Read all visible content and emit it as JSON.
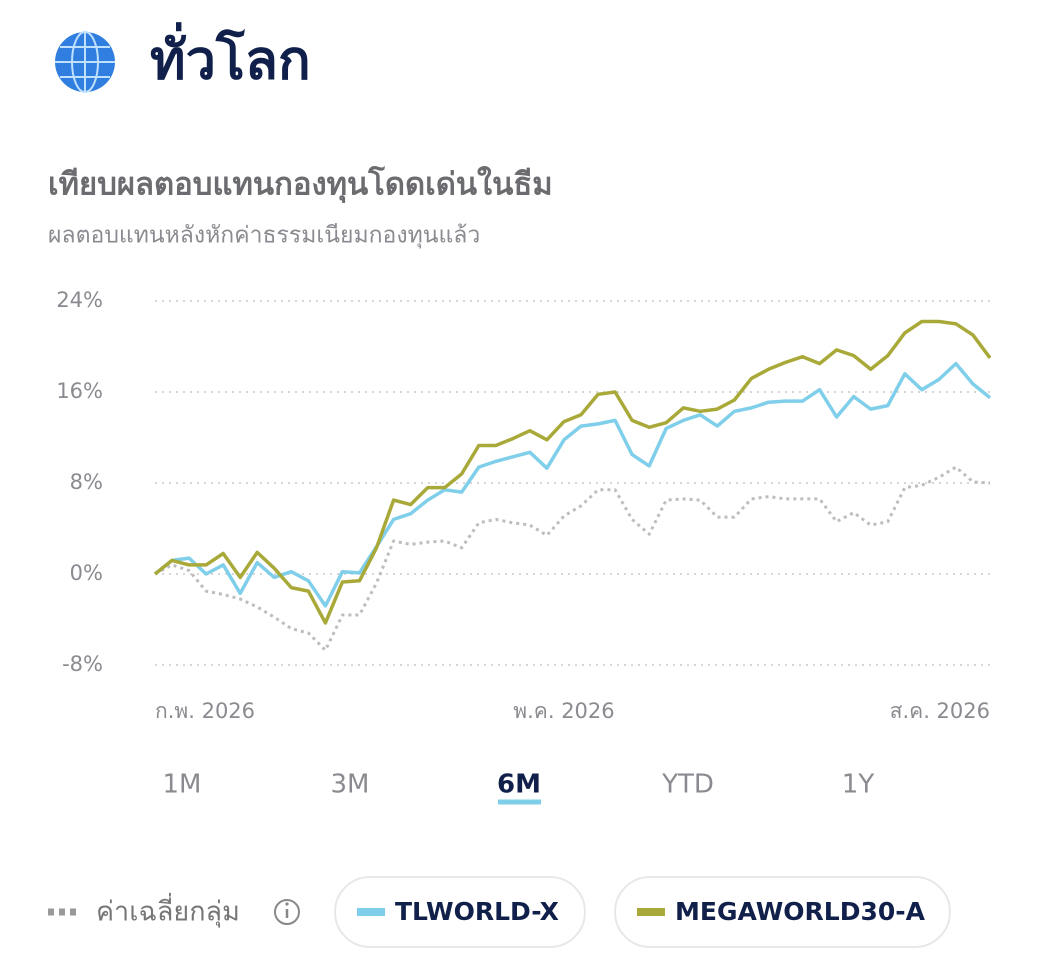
{
  "header": {
    "title": "ทั่วโลก"
  },
  "tabs": {
    "items": [
      "1M",
      "3M",
      "6M",
      "YTD",
      "1Y"
    ],
    "active": 2
  },
  "chart_data": {
    "type": "line",
    "title": "เทียบผลตอบแทนกองทุนโดดเด่นในธีม",
    "subtitle": "ผลตอบแทนหลังหักค่าธรรมเนียมกองทุนแล้ว",
    "categories": [
      "ก.พ. 2026",
      null,
      null,
      null,
      null,
      null,
      null,
      null,
      null,
      null,
      null,
      null,
      null,
      null,
      null,
      null,
      null,
      null,
      null,
      null,
      null,
      null,
      null,
      null,
      "พ.ค. 2026",
      null,
      null,
      null,
      null,
      null,
      null,
      null,
      null,
      null,
      null,
      null,
      null,
      null,
      null,
      null,
      null,
      null,
      null,
      null,
      null,
      null,
      null,
      null,
      null,
      "ส.ค. 2026"
    ],
    "ylim": [
      -8,
      24
    ],
    "yticks": [
      {
        "value": 24,
        "label": "24%"
      },
      {
        "value": 16,
        "label": "16%"
      },
      {
        "value": 8,
        "label": "8%"
      },
      {
        "value": 0,
        "label": "0%"
      },
      {
        "value": -8,
        "label": "-8%"
      }
    ],
    "grid": true,
    "series": [
      {
        "name": "ค่าเฉลี่ยกลุ่ม",
        "color": "#bdbdbd",
        "line_style": "dotted",
        "values": [
          0,
          0.8,
          0.3,
          -1.5,
          -1.8,
          -2.2,
          -2.9,
          -3.8,
          -4.8,
          -5.2,
          -6.7,
          -3.6,
          -3.6,
          -0.8,
          2.9,
          2.6,
          2.8,
          2.9,
          2.3,
          4.5,
          4.8,
          4.5,
          4.3,
          3.4,
          5.1,
          6,
          7.4,
          7.4,
          4.8,
          3.5,
          6.5,
          6.6,
          6.5,
          5,
          5,
          6.6,
          6.8,
          6.6,
          6.6,
          6.6,
          4.6,
          5.4,
          4.3,
          4.6,
          7.6,
          7.8,
          8.5,
          9.4,
          8.1,
          8
        ]
      },
      {
        "name": "TLWORLD-X",
        "color": "#7fcfea",
        "line_style": "solid",
        "values": [
          0,
          1.2,
          1.4,
          0,
          0.8,
          -1.7,
          1,
          -0.3,
          0.2,
          -0.6,
          -2.8,
          0.2,
          0.1,
          2.4,
          4.8,
          5.3,
          6.5,
          7.4,
          7.2,
          9.4,
          9.9,
          10.3,
          10.7,
          9.3,
          11.8,
          13,
          13.2,
          13.5,
          10.5,
          9.5,
          12.8,
          13.5,
          14,
          13,
          14.3,
          14.6,
          15.1,
          15.2,
          15.2,
          16.2,
          13.8,
          15.6,
          14.5,
          14.8,
          17.6,
          16.2,
          17.1,
          18.5,
          16.7,
          15.5
        ]
      },
      {
        "name": "MEGAWORLD30-A",
        "color": "#a9a93a",
        "line_style": "solid",
        "values": [
          0,
          1.2,
          0.8,
          0.8,
          1.8,
          -0.3,
          1.9,
          0.5,
          -1.2,
          -1.5,
          -4.3,
          -0.7,
          -0.6,
          2.3,
          6.5,
          6.1,
          7.6,
          7.6,
          8.8,
          11.3,
          11.3,
          11.9,
          12.6,
          11.8,
          13.4,
          14,
          15.8,
          16,
          13.5,
          12.9,
          13.3,
          14.6,
          14.3,
          14.5,
          15.3,
          17.2,
          18,
          18.6,
          19.1,
          18.5,
          19.7,
          19.2,
          18,
          19.2,
          21.2,
          22.2,
          22.2,
          22,
          21,
          19
        ]
      }
    ]
  }
}
